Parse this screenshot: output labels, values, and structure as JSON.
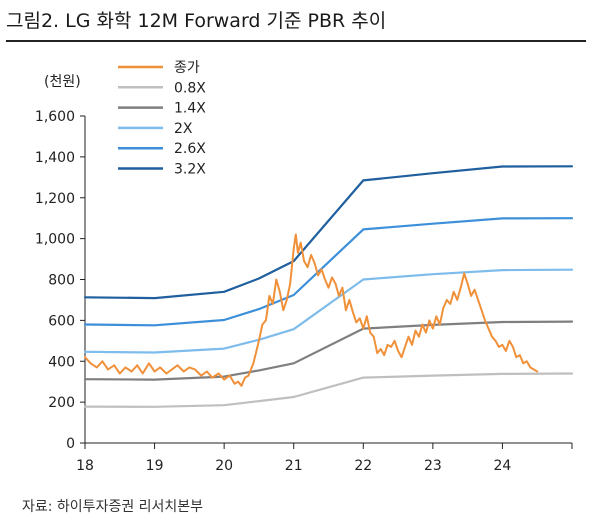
{
  "title": "그림2. LG 화학 12M Forward 기준 PBR 추이",
  "source": "자료: 하이투자증권 리서치본부",
  "chart_data": {
    "type": "line",
    "ylabel": "(천원)",
    "xlabel": "",
    "ylim": [
      0,
      1600
    ],
    "xlim": [
      18,
      25
    ],
    "yticks": [
      0,
      200,
      400,
      600,
      800,
      1000,
      1200,
      1400,
      1600
    ],
    "ytick_labels": [
      "0",
      "200",
      "400",
      "600",
      "800",
      "1,000",
      "1,200",
      "1,400",
      "1,600"
    ],
    "xticks": [
      18,
      19,
      20,
      21,
      22,
      23,
      24
    ],
    "xtick_labels": [
      "18",
      "19",
      "20",
      "21",
      "22",
      "23",
      "24"
    ],
    "grid": false,
    "legend_position": "top-left",
    "series": [
      {
        "name": "종가",
        "color": "#F0913A",
        "x": [
          18.0,
          18.08,
          18.17,
          18.25,
          18.33,
          18.42,
          18.5,
          18.58,
          18.67,
          18.75,
          18.83,
          18.92,
          19.0,
          19.08,
          19.17,
          19.25,
          19.33,
          19.42,
          19.5,
          19.58,
          19.67,
          19.75,
          19.83,
          19.92,
          20.0,
          20.08,
          20.15,
          20.2,
          20.25,
          20.3,
          20.35,
          20.42,
          20.5,
          20.55,
          20.6,
          20.65,
          20.7,
          20.75,
          20.8,
          20.85,
          20.9,
          20.95,
          21.0,
          21.03,
          21.06,
          21.1,
          21.15,
          21.2,
          21.25,
          21.3,
          21.35,
          21.4,
          21.45,
          21.5,
          21.55,
          21.6,
          21.65,
          21.7,
          21.75,
          21.8,
          21.85,
          21.9,
          21.95,
          22.0,
          22.05,
          22.1,
          22.15,
          22.2,
          22.25,
          22.3,
          22.35,
          22.4,
          22.45,
          22.5,
          22.55,
          22.6,
          22.65,
          22.7,
          22.75,
          22.8,
          22.85,
          22.9,
          22.95,
          23.0,
          23.05,
          23.1,
          23.15,
          23.2,
          23.25,
          23.3,
          23.35,
          23.4,
          23.45,
          23.5,
          23.55,
          23.6,
          23.65,
          23.7,
          23.75,
          23.8,
          23.85,
          23.9,
          23.95,
          24.0,
          24.05,
          24.1,
          24.15,
          24.2,
          24.25,
          24.3,
          24.35,
          24.4,
          24.45,
          24.5
        ],
        "values": [
          420,
          390,
          370,
          400,
          360,
          380,
          340,
          370,
          350,
          380,
          340,
          390,
          350,
          370,
          340,
          360,
          380,
          350,
          370,
          360,
          330,
          350,
          320,
          340,
          310,
          330,
          290,
          300,
          280,
          320,
          330,
          390,
          500,
          580,
          600,
          720,
          680,
          800,
          740,
          650,
          700,
          780,
          950,
          1020,
          930,
          980,
          890,
          860,
          920,
          880,
          820,
          850,
          800,
          760,
          810,
          780,
          720,
          760,
          650,
          700,
          640,
          590,
          610,
          560,
          620,
          540,
          520,
          440,
          460,
          430,
          480,
          470,
          500,
          450,
          420,
          470,
          520,
          480,
          550,
          520,
          580,
          540,
          600,
          560,
          620,
          580,
          660,
          700,
          680,
          740,
          700,
          760,
          830,
          780,
          720,
          750,
          700,
          650,
          600,
          560,
          520,
          500,
          470,
          480,
          450,
          500,
          470,
          420,
          430,
          390,
          400,
          370,
          360,
          350
        ]
      },
      {
        "name": "0.8X",
        "color": "#BFBFBF",
        "x": [
          18,
          19,
          20,
          20.5,
          21,
          22,
          23,
          24,
          25
        ],
        "values": [
          178,
          177,
          185,
          205,
          225,
          320,
          330,
          338,
          340
        ]
      },
      {
        "name": "1.4X",
        "color": "#7F7F7F",
        "x": [
          18,
          19,
          20,
          20.5,
          21,
          22,
          23,
          24,
          25
        ],
        "values": [
          312,
          310,
          325,
          355,
          390,
          560,
          578,
          592,
          594
        ]
      },
      {
        "name": "2X",
        "color": "#7EBCEB",
        "x": [
          18,
          19,
          20,
          20.5,
          21,
          22,
          23,
          24,
          25
        ],
        "values": [
          446,
          443,
          462,
          505,
          557,
          800,
          826,
          846,
          848
        ]
      },
      {
        "name": "2.6X",
        "color": "#3D8FD9",
        "x": [
          18,
          19,
          20,
          20.5,
          21,
          22,
          23,
          24,
          25
        ],
        "values": [
          580,
          576,
          602,
          655,
          724,
          1045,
          1073,
          1099,
          1100
        ]
      },
      {
        "name": "3.2X",
        "color": "#1F5F9E",
        "x": [
          18,
          19,
          20,
          20.5,
          21,
          22,
          23,
          24,
          25
        ],
        "values": [
          713,
          709,
          740,
          805,
          890,
          1285,
          1320,
          1353,
          1354
        ]
      }
    ]
  }
}
